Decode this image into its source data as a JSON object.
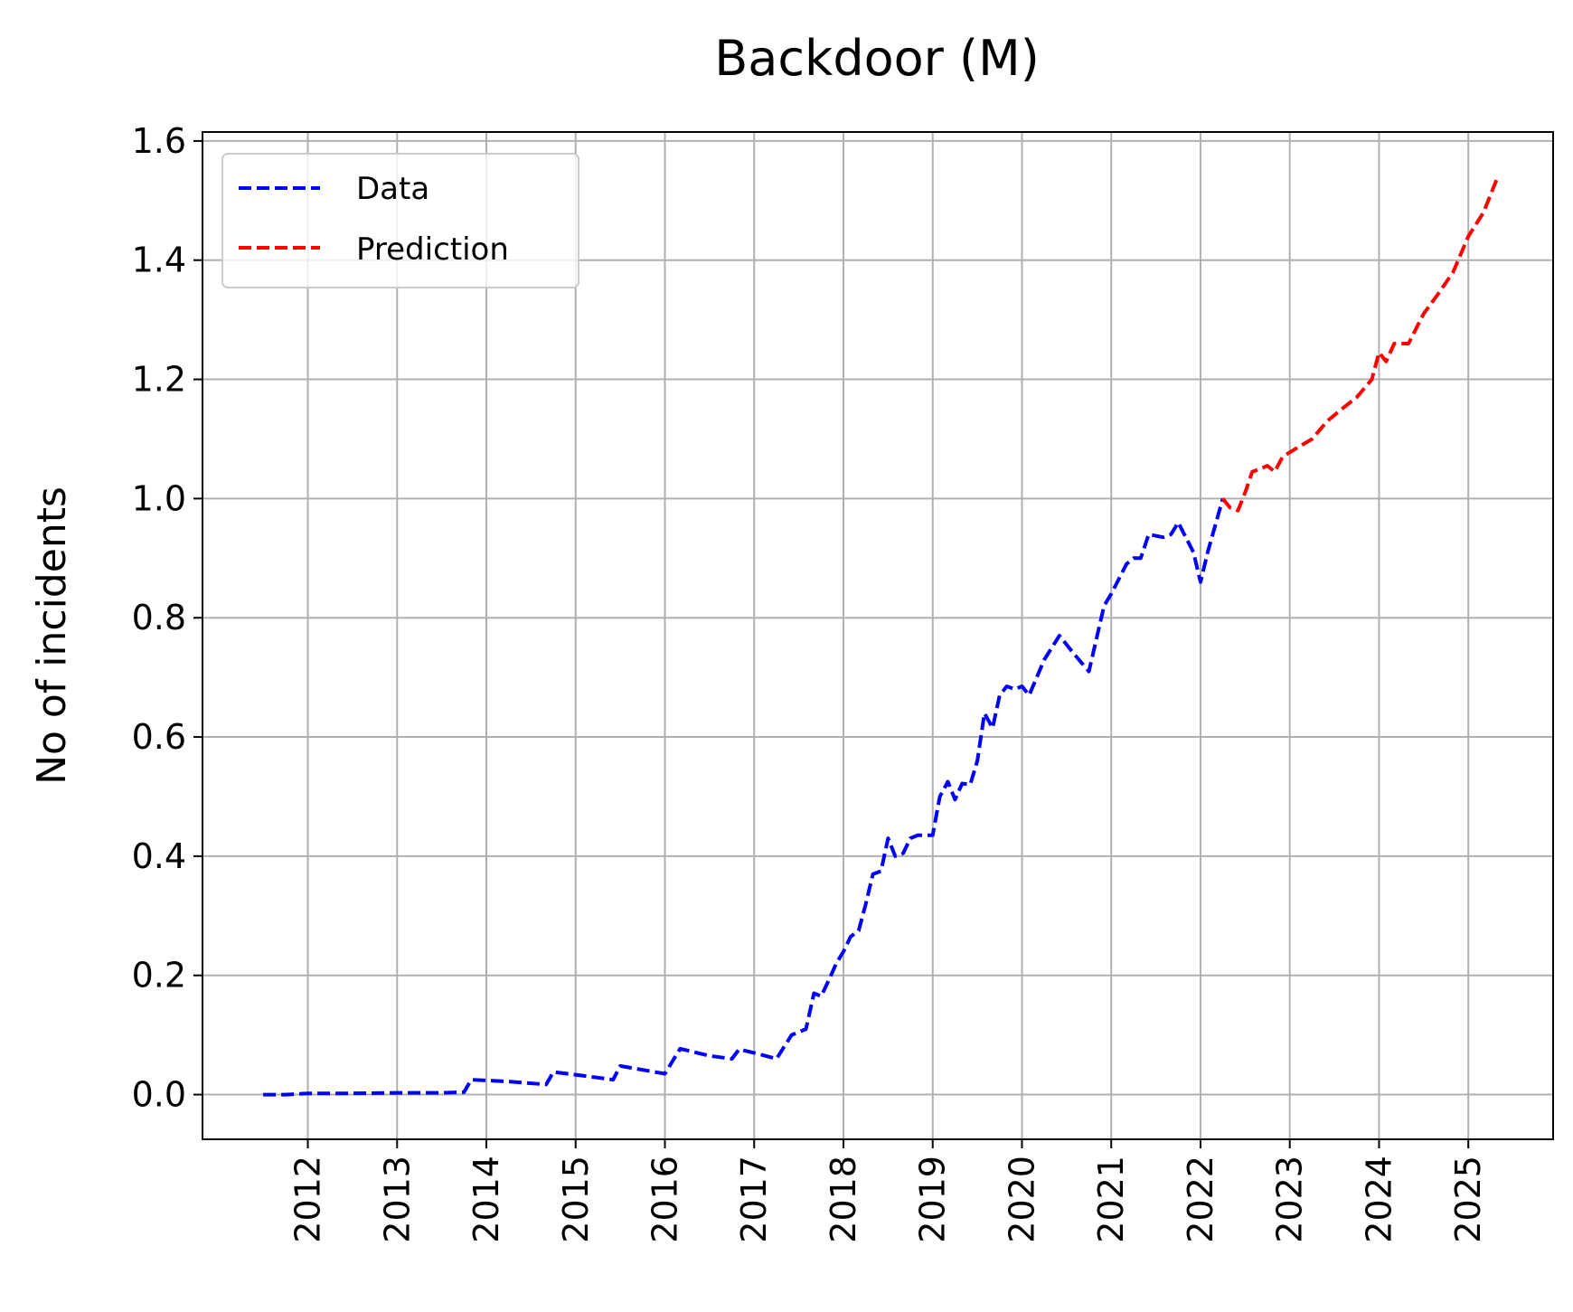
{
  "chart_data": {
    "type": "line",
    "title": "Backdoor (M)",
    "xlabel": "",
    "ylabel": "No of incidents",
    "xlim": [
      2010.82,
      2025.95
    ],
    "ylim": [
      -0.075,
      1.615
    ],
    "x_ticks": [
      "2012",
      "2013",
      "2014",
      "2015",
      "2016",
      "2017",
      "2018",
      "2019",
      "2020",
      "2021",
      "2022",
      "2023",
      "2024",
      "2025"
    ],
    "y_ticks": [
      "0.0",
      "0.2",
      "0.4",
      "0.6",
      "0.8",
      "1.0",
      "1.2",
      "1.4",
      "1.6"
    ],
    "grid": true,
    "legend_position": "top-left",
    "series": [
      {
        "name": "Data",
        "color": "#0000ff",
        "style": "dashed",
        "points": [
          [
            2011.5,
            0.0
          ],
          [
            2011.75,
            0.0
          ],
          [
            2012.0,
            0.002
          ],
          [
            2012.5,
            0.002
          ],
          [
            2013.0,
            0.003
          ],
          [
            2013.5,
            0.003
          ],
          [
            2013.75,
            0.004
          ],
          [
            2013.83,
            0.025
          ],
          [
            2014.25,
            0.022
          ],
          [
            2014.67,
            0.017
          ],
          [
            2014.75,
            0.038
          ],
          [
            2015.17,
            0.03
          ],
          [
            2015.42,
            0.025
          ],
          [
            2015.5,
            0.048
          ],
          [
            2016.0,
            0.035
          ],
          [
            2016.17,
            0.077
          ],
          [
            2016.5,
            0.065
          ],
          [
            2016.75,
            0.06
          ],
          [
            2016.83,
            0.076
          ],
          [
            2017.0,
            0.07
          ],
          [
            2017.25,
            0.06
          ],
          [
            2017.42,
            0.1
          ],
          [
            2017.58,
            0.11
          ],
          [
            2017.67,
            0.17
          ],
          [
            2017.75,
            0.165
          ],
          [
            2017.83,
            0.19
          ],
          [
            2017.92,
            0.22
          ],
          [
            2018.0,
            0.24
          ],
          [
            2018.08,
            0.265
          ],
          [
            2018.17,
            0.275
          ],
          [
            2018.25,
            0.32
          ],
          [
            2018.33,
            0.37
          ],
          [
            2018.42,
            0.375
          ],
          [
            2018.5,
            0.43
          ],
          [
            2018.58,
            0.4
          ],
          [
            2018.67,
            0.405
          ],
          [
            2018.75,
            0.43
          ],
          [
            2018.83,
            0.435
          ],
          [
            2019.0,
            0.435
          ],
          [
            2019.08,
            0.5
          ],
          [
            2019.17,
            0.525
          ],
          [
            2019.25,
            0.495
          ],
          [
            2019.33,
            0.522
          ],
          [
            2019.42,
            0.52
          ],
          [
            2019.5,
            0.56
          ],
          [
            2019.58,
            0.64
          ],
          [
            2019.67,
            0.615
          ],
          [
            2019.75,
            0.67
          ],
          [
            2019.83,
            0.685
          ],
          [
            2019.92,
            0.68
          ],
          [
            2020.0,
            0.685
          ],
          [
            2020.08,
            0.67
          ],
          [
            2020.25,
            0.73
          ],
          [
            2020.42,
            0.77
          ],
          [
            2020.58,
            0.74
          ],
          [
            2020.75,
            0.71
          ],
          [
            2020.92,
            0.82
          ],
          [
            2021.0,
            0.84
          ],
          [
            2021.17,
            0.89
          ],
          [
            2021.25,
            0.9
          ],
          [
            2021.33,
            0.9
          ],
          [
            2021.42,
            0.94
          ],
          [
            2021.58,
            0.935
          ],
          [
            2021.67,
            0.94
          ],
          [
            2021.75,
            0.96
          ],
          [
            2021.92,
            0.91
          ],
          [
            2022.0,
            0.86
          ],
          [
            2022.08,
            0.91
          ],
          [
            2022.25,
            1.0
          ]
        ]
      },
      {
        "name": "Prediction",
        "color": "#ff0000",
        "style": "dashed",
        "points": [
          [
            2022.25,
            1.0
          ],
          [
            2022.33,
            0.985
          ],
          [
            2022.42,
            0.98
          ],
          [
            2022.5,
            1.01
          ],
          [
            2022.58,
            1.045
          ],
          [
            2022.67,
            1.05
          ],
          [
            2022.75,
            1.055
          ],
          [
            2022.83,
            1.045
          ],
          [
            2022.92,
            1.07
          ],
          [
            2023.08,
            1.085
          ],
          [
            2023.25,
            1.1
          ],
          [
            2023.42,
            1.13
          ],
          [
            2023.58,
            1.15
          ],
          [
            2023.75,
            1.17
          ],
          [
            2023.92,
            1.2
          ],
          [
            2024.0,
            1.245
          ],
          [
            2024.08,
            1.23
          ],
          [
            2024.17,
            1.26
          ],
          [
            2024.33,
            1.26
          ],
          [
            2024.5,
            1.31
          ],
          [
            2024.67,
            1.345
          ],
          [
            2024.83,
            1.38
          ],
          [
            2025.0,
            1.44
          ],
          [
            2025.17,
            1.48
          ],
          [
            2025.33,
            1.54
          ]
        ]
      }
    ]
  }
}
